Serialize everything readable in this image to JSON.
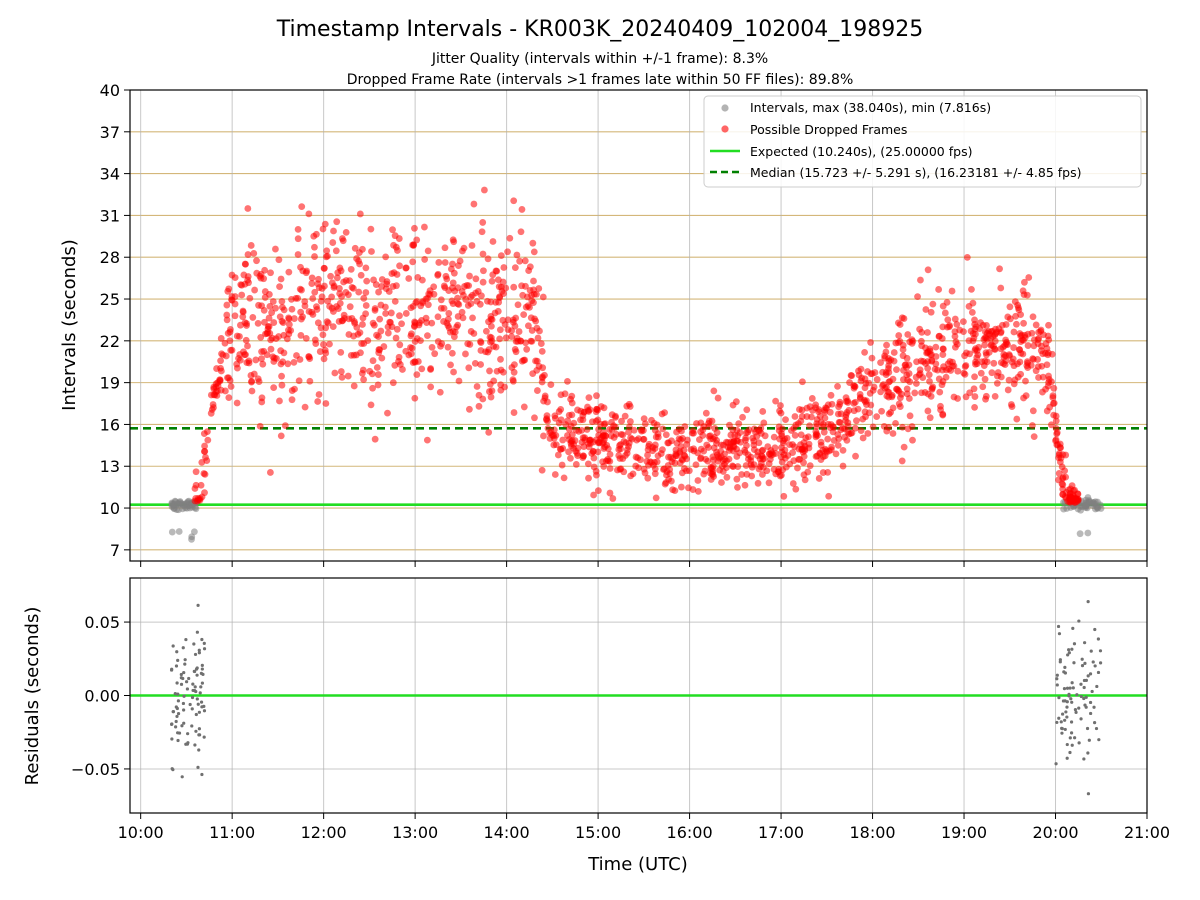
{
  "chart_data": [
    {
      "type": "scatter",
      "title": "Timestamp Intervals - KR003K_20240409_102004_198925",
      "subtitle_1": "Jitter Quality (intervals within +/-1 frame): 8.3%",
      "subtitle_2": "Dropped Frame Rate (intervals >1 frames late within 50 FF files): 89.8%",
      "xlabel": "",
      "ylabel": "Intervals (seconds)",
      "xlim": [
        "09:53",
        "21:00"
      ],
      "ylim": [
        6.2,
        40
      ],
      "yticks": [
        7,
        10,
        13,
        16,
        19,
        22,
        25,
        28,
        31,
        34,
        37,
        40
      ],
      "grid": true,
      "legend_position": "top-right",
      "reference_lines": [
        {
          "name": "Expected (10.240s), (25.00000 fps)",
          "y": 10.24,
          "color": "#22dd22",
          "style": "solid"
        },
        {
          "name": "Median (15.723 +/- 5.291 s), (16.23181 +/- 4.85 fps)",
          "y": 15.723,
          "color": "#008000",
          "style": "dashed"
        }
      ],
      "series": [
        {
          "name": "Intervals, max (38.040s), min (7.816s)",
          "color": "#808080",
          "x_range": [
            [
              "10:20",
              "10:38"
            ],
            [
              "20:05",
              "20:30"
            ]
          ],
          "y_center": 10.24,
          "approx_count": 110
        },
        {
          "name": "Possible Dropped Frames",
          "color": "#ff0000",
          "x_range": [
            "10:35",
            "20:15"
          ],
          "approx_count": 1900,
          "trend": [
            {
              "x": "10:38",
              "y": 11.0
            },
            {
              "x": "10:48",
              "y": 18.0
            },
            {
              "x": "10:55",
              "y": 22.0
            },
            {
              "x": "11:30",
              "y": 23.5
            },
            {
              "x": "12:00",
              "y": 24.5
            },
            {
              "x": "12:30",
              "y": 24.0
            },
            {
              "x": "13:00",
              "y": 24.0
            },
            {
              "x": "13:30",
              "y": 24.0
            },
            {
              "x": "14:00",
              "y": 23.5
            },
            {
              "x": "14:22",
              "y": 22.5
            },
            {
              "x": "14:27",
              "y": 15.5
            },
            {
              "x": "15:00",
              "y": 15.0
            },
            {
              "x": "15:30",
              "y": 14.2
            },
            {
              "x": "16:00",
              "y": 14.0
            },
            {
              "x": "16:30",
              "y": 14.0
            },
            {
              "x": "17:00",
              "y": 14.3
            },
            {
              "x": "17:30",
              "y": 15.5
            },
            {
              "x": "18:00",
              "y": 18.5
            },
            {
              "x": "18:30",
              "y": 20.0
            },
            {
              "x": "19:00",
              "y": 21.5
            },
            {
              "x": "19:30",
              "y": 21.5
            },
            {
              "x": "19:55",
              "y": 21.0
            },
            {
              "x": "20:02",
              "y": 14.0
            },
            {
              "x": "20:08",
              "y": 10.4
            }
          ]
        }
      ]
    },
    {
      "type": "scatter",
      "xlabel": "Time (UTC)",
      "ylabel": "Residuals (seconds)",
      "xlim": [
        "09:53",
        "21:00"
      ],
      "ylim": [
        -0.08,
        0.08
      ],
      "yticks": [
        -0.05,
        0.0,
        0.05
      ],
      "ytick_labels": [
        "−0.05",
        "0.00",
        "0.05"
      ],
      "xticks": [
        "10:00",
        "11:00",
        "12:00",
        "13:00",
        "14:00",
        "15:00",
        "16:00",
        "17:00",
        "18:00",
        "19:00",
        "20:00",
        "21:00"
      ],
      "grid": true,
      "reference_lines": [
        {
          "y": 0.0,
          "color": "#22dd22",
          "style": "solid"
        }
      ],
      "series": [
        {
          "color": "#707070",
          "x_range": [
            [
              "10:20",
              "10:42"
            ],
            [
              "20:00",
              "20:30"
            ]
          ],
          "approx_count": 190
        }
      ]
    }
  ]
}
